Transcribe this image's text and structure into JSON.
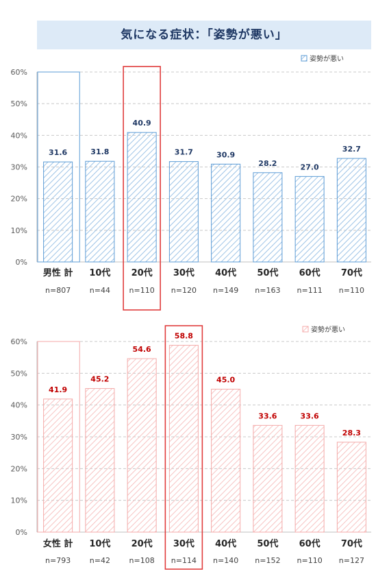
{
  "title": "気になる症状：「姿勢が悪い」",
  "chart_data": [
    {
      "type": "bar",
      "legend": "姿勢が悪い",
      "legend_position": "top-right",
      "categories": [
        "男性 計",
        "10代",
        "20代",
        "30代",
        "40代",
        "50代",
        "60代",
        "70代"
      ],
      "n_labels": [
        "n=807",
        "n=44",
        "n=110",
        "n=120",
        "n=149",
        "n=163",
        "n=111",
        "n=110"
      ],
      "values": [
        31.6,
        31.8,
        40.9,
        31.7,
        30.9,
        28.2,
        27.0,
        32.7
      ],
      "value_labels": [
        "31.6",
        "31.8",
        "40.9",
        "31.7",
        "30.9",
        "28.2",
        "27.0",
        "32.7"
      ],
      "highlight_category": "20代",
      "ylim": [
        0,
        60
      ],
      "yticks": [
        "0%",
        "10%",
        "20%",
        "30%",
        "40%",
        "50%",
        "60%"
      ],
      "grid": true,
      "colors": {
        "bar_stroke": "#5b9bd5",
        "hatch": "#9dc3e6",
        "label": "#1f3864",
        "highlight": "#e03c3c"
      }
    },
    {
      "type": "bar",
      "legend": "姿勢が悪い",
      "legend_position": "top-right",
      "categories": [
        "女性 計",
        "10代",
        "20代",
        "30代",
        "40代",
        "50代",
        "60代",
        "70代"
      ],
      "n_labels": [
        "n=793",
        "n=42",
        "n=108",
        "n=114",
        "n=140",
        "n=152",
        "n=110",
        "n=127"
      ],
      "values": [
        41.9,
        45.2,
        54.6,
        58.8,
        45.0,
        33.6,
        33.6,
        28.3
      ],
      "value_labels": [
        "41.9",
        "45.2",
        "54.6",
        "58.8",
        "45.0",
        "33.6",
        "33.6",
        "28.3"
      ],
      "highlight_category": "30代",
      "ylim": [
        0,
        60
      ],
      "yticks": [
        "0%",
        "10%",
        "20%",
        "30%",
        "40%",
        "50%",
        "60%"
      ],
      "grid": true,
      "colors": {
        "bar_stroke": "#f4a9a8",
        "hatch": "#f7c3c2",
        "label": "#c00000",
        "highlight": "#e03c3c"
      }
    }
  ]
}
